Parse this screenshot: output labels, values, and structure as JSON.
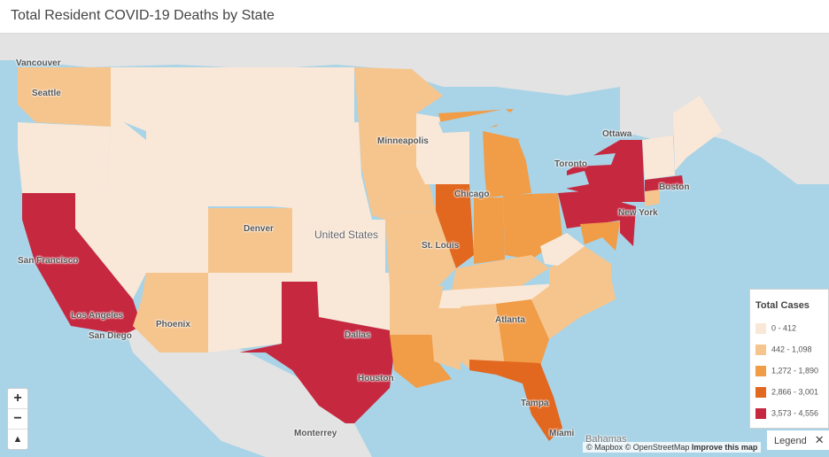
{
  "header": {
    "title": "Total Resident COVID-19 Deaths by State"
  },
  "colors": {
    "water": "#a9d3e6",
    "land": "#e3e3e3",
    "bin0": "#f9e8d8",
    "bin1": "#f6c58e",
    "bin2": "#f19c47",
    "bin3": "#e2671f",
    "bin4": "#c6283f"
  },
  "map": {
    "country_label": "United States",
    "cities": [
      "Vancouver",
      "Seattle",
      "Ottawa",
      "Minneapolis",
      "Toronto",
      "Boston",
      "Chicago",
      "New York",
      "Denver",
      "St. Louis",
      "San Francisco",
      "Los Angeles",
      "San Diego",
      "Phoenix",
      "Dallas",
      "Atlanta",
      "Houston",
      "Tampa",
      "Monterrey",
      "Miami",
      "Bahamas"
    ]
  },
  "legend": {
    "title": "Total Cases",
    "bins": [
      "0 - 412",
      "442 - 1,098",
      "1,272 - 1,890",
      "2,866 - 3,001",
      "3,573 - 4,556"
    ],
    "toggle_label": "Legend"
  },
  "attribution": {
    "mapbox": "© Mapbox",
    "osm": "© OpenStreetMap",
    "improve": "Improve this map"
  },
  "controls": {
    "zoom_in": "+",
    "zoom_out": "−",
    "compass": "▲"
  }
}
